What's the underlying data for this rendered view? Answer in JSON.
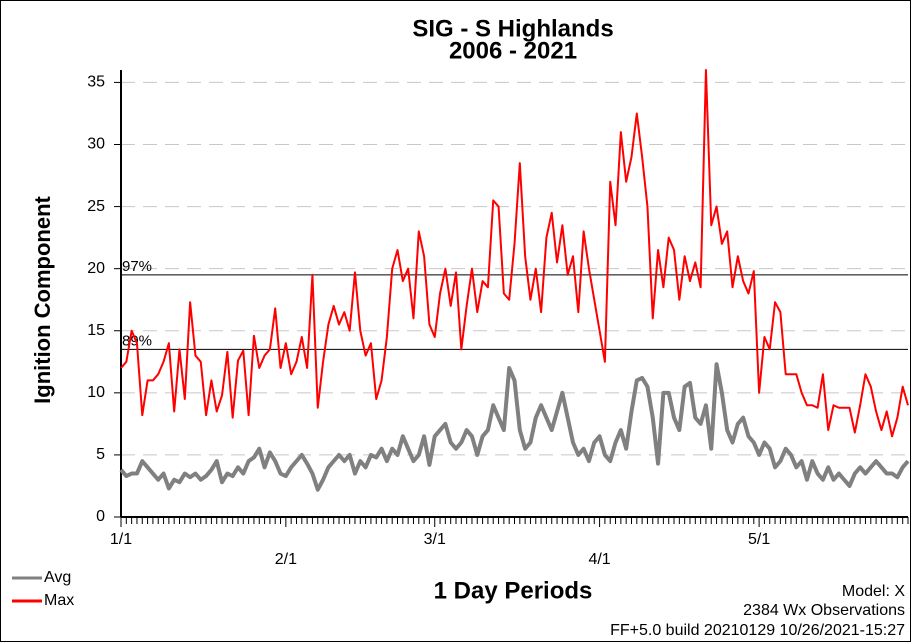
{
  "chart_data": {
    "type": "line",
    "title": "SIG - S Highlands",
    "subtitle": "2006 - 2021",
    "x_label": "1 Day Periods",
    "y_label": "Ignition Component",
    "footer": [
      "Model: X",
      "2384 Wx Observations",
      "FF+5.0 build 20210129 10/26/2021-15:27"
    ],
    "categories": [
      "1/1",
      null,
      null,
      null,
      null,
      null,
      null,
      null,
      null,
      null,
      null,
      null,
      null,
      null,
      null,
      null,
      null,
      null,
      null,
      null,
      null,
      null,
      null,
      null,
      null,
      null,
      null,
      null,
      null,
      null,
      null,
      "2/1",
      null,
      null,
      null,
      null,
      null,
      null,
      null,
      null,
      null,
      null,
      null,
      null,
      null,
      null,
      null,
      null,
      null,
      null,
      null,
      null,
      null,
      null,
      null,
      null,
      null,
      null,
      null,
      "3/1",
      null,
      null,
      null,
      null,
      null,
      null,
      null,
      null,
      null,
      null,
      null,
      null,
      null,
      null,
      null,
      null,
      null,
      null,
      null,
      null,
      null,
      null,
      null,
      null,
      null,
      null,
      null,
      null,
      null,
      null,
      "4/1",
      null,
      null,
      null,
      null,
      null,
      null,
      null,
      null,
      null,
      null,
      null,
      null,
      null,
      null,
      null,
      null,
      null,
      null,
      null,
      null,
      null,
      null,
      null,
      null,
      null,
      null,
      null,
      null,
      null,
      "5/1",
      null,
      null,
      null,
      null,
      null,
      null,
      null,
      null,
      null,
      null,
      null,
      null,
      null,
      null,
      null,
      null,
      null,
      null,
      null,
      null,
      null,
      null,
      null,
      null,
      null,
      null,
      null,
      null
    ],
    "series": [
      {
        "name": "Avg",
        "color": "#808080",
        "values": [
          3.8,
          3.3,
          3.5,
          3.5,
          4.5,
          4,
          3.5,
          3,
          3.5,
          2.3,
          3,
          2.8,
          3.5,
          3.2,
          3.5,
          3,
          3.3,
          3.8,
          4.5,
          2.8,
          3.5,
          3.3,
          4,
          3.5,
          4.5,
          4.8,
          5.5,
          4,
          5.2,
          4.5,
          3.5,
          3.3,
          4,
          4.5,
          5,
          4.3,
          3.5,
          2.2,
          3,
          4,
          4.5,
          5,
          4.5,
          5,
          3.5,
          4.5,
          4,
          5,
          4.8,
          5.5,
          4.5,
          5.5,
          5,
          6.5,
          5.5,
          4.5,
          5,
          6.5,
          4.2,
          6.5,
          7,
          7.5,
          6,
          5.5,
          6,
          7,
          6.5,
          5,
          6.5,
          7,
          9,
          8,
          7,
          12,
          11,
          7,
          5.5,
          6,
          8,
          9,
          8,
          7,
          8.5,
          10,
          8,
          6,
          5,
          5.5,
          4.5,
          6,
          6.5,
          5,
          4.5,
          6,
          7,
          5.5,
          8.5,
          11,
          11.2,
          10.5,
          8,
          4.3,
          10,
          10,
          8,
          7,
          10.5,
          10.8,
          8,
          7.5,
          9,
          5.5,
          12.3,
          10,
          7,
          6,
          7.5,
          8,
          6.5,
          6,
          5,
          6,
          5.5,
          4,
          4.5,
          5.5,
          5,
          4,
          4.5,
          3,
          4.5,
          3.5,
          3,
          4,
          3,
          3.5,
          3,
          2.5,
          3.5,
          4,
          3.5,
          4,
          4.5,
          4,
          3.5,
          3.5,
          3.2,
          4,
          4.5
        ]
      },
      {
        "name": "Max",
        "color": "#ff0000",
        "values": [
          12,
          12.5,
          15,
          14,
          8.2,
          11,
          11,
          11.5,
          12.5,
          14,
          8.5,
          13.5,
          9.5,
          17.3,
          13,
          12.5,
          8.2,
          11,
          8.5,
          9.8,
          13.3,
          8,
          12.6,
          13.4,
          8.2,
          14.6,
          12,
          13,
          13.5,
          16.8,
          12,
          14,
          11.5,
          12.5,
          14.5,
          12,
          19.5,
          8.8,
          12.5,
          15.5,
          17,
          15.5,
          16.5,
          15,
          19.7,
          15,
          13,
          14,
          9.5,
          11,
          14.5,
          20,
          21.5,
          19,
          20,
          16,
          23,
          21,
          15.5,
          14.5,
          18,
          20,
          17,
          19.7,
          13.5,
          17,
          20,
          16.5,
          19,
          18.5,
          25.5,
          25,
          18,
          17.5,
          22,
          28.5,
          21,
          17.5,
          20,
          16.5,
          22.5,
          24.5,
          20.5,
          23.5,
          19.5,
          21,
          16.5,
          23,
          20,
          17.5,
          15,
          12.5,
          27,
          23.5,
          31,
          27,
          29,
          32.5,
          29,
          25,
          16,
          21.5,
          18.5,
          22.5,
          21.5,
          17.5,
          21,
          19,
          20.5,
          18.5,
          36,
          23.5,
          25,
          22,
          23,
          18.5,
          21,
          19,
          18,
          19.8,
          10,
          14.5,
          13.5,
          17.3,
          16.5,
          11.5,
          11.5,
          11.5,
          10,
          9,
          9,
          8.8,
          11.5,
          7,
          9,
          8.8,
          8.8,
          8.8,
          6.8,
          9,
          11.5,
          10.5,
          8.5,
          7,
          8.5,
          6.5,
          8,
          10.5,
          9
        ]
      }
    ],
    "reference_lines": [
      {
        "value": 19.5,
        "label": "97%"
      },
      {
        "value": 13.5,
        "label": "89%"
      }
    ],
    "ylim": [
      0,
      36
    ],
    "yticks": [
      0,
      5,
      10,
      15,
      20,
      25,
      30,
      35
    ],
    "grid": true
  }
}
